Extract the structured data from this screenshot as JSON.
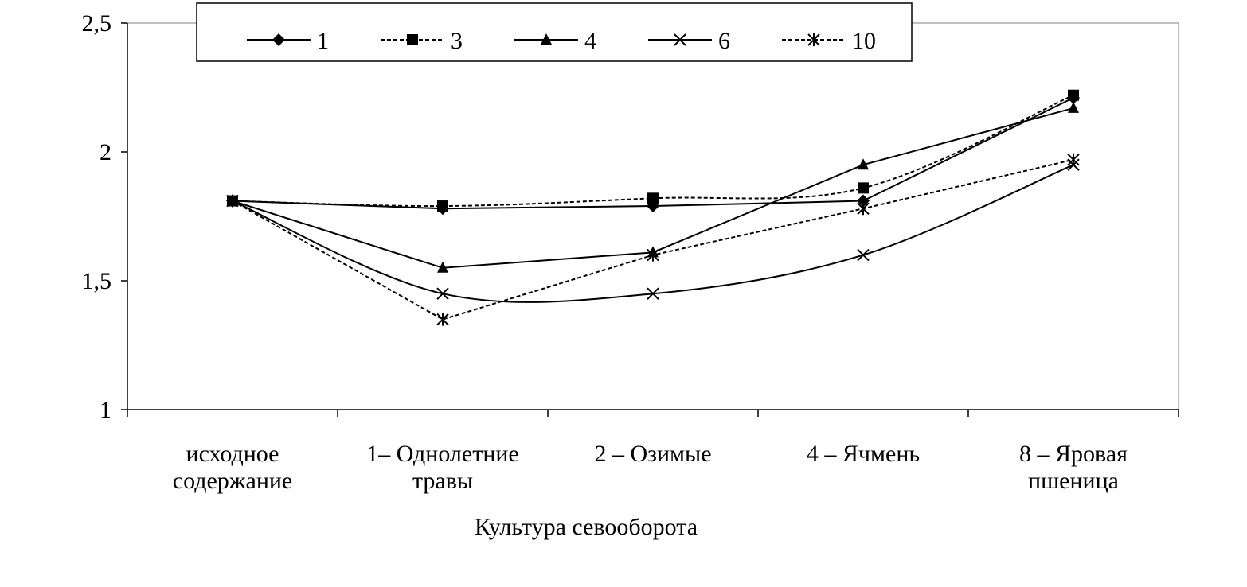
{
  "chart_data": {
    "type": "line",
    "title": "",
    "xlabel": "Культура севооборота",
    "ylabel": "",
    "ylim": [
      1,
      2.5
    ],
    "yticks": [
      "1",
      "1,5",
      "2",
      "2,5"
    ],
    "ytick_values": [
      1,
      1.5,
      2,
      2.5
    ],
    "categories": [
      [
        "исходное",
        "содержание"
      ],
      [
        "1– Однолетние",
        "травы"
      ],
      [
        "2 – Озимые"
      ],
      [
        "4 – Ячмень"
      ],
      [
        "8 – Яровая",
        "пшеница"
      ]
    ],
    "legend_position": "top",
    "series": [
      {
        "name": "1",
        "marker": "diamond",
        "dash": false,
        "smooth": false,
        "values": [
          1.81,
          1.78,
          1.79,
          1.81,
          2.21
        ]
      },
      {
        "name": "3",
        "marker": "square",
        "dash": true,
        "smooth": true,
        "values": [
          1.81,
          1.79,
          1.82,
          1.86,
          2.22
        ]
      },
      {
        "name": "4",
        "marker": "triangle",
        "dash": false,
        "smooth": false,
        "values": [
          1.81,
          1.55,
          1.61,
          1.95,
          2.17
        ]
      },
      {
        "name": "6",
        "marker": "x",
        "dash": false,
        "smooth": true,
        "values": [
          1.81,
          1.45,
          1.45,
          1.6,
          1.95
        ]
      },
      {
        "name": "10",
        "marker": "star",
        "dash": true,
        "smooth": false,
        "values": [
          1.81,
          1.35,
          1.6,
          1.78,
          1.97
        ]
      }
    ],
    "grid": false,
    "color": "#000000"
  }
}
